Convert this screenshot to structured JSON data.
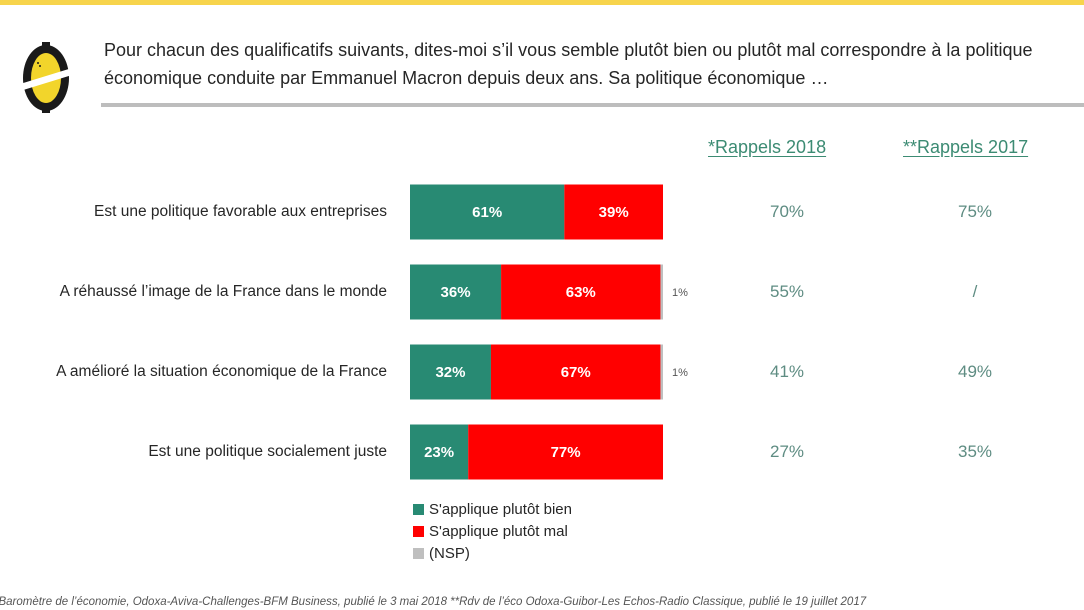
{
  "question": "Pour chacun des qualificatifs suivants, dites-moi s’il vous semble plutôt bien ou plutôt mal correspondre à la politique économique conduite par Emmanuel Macron depuis deux ans. Sa politique économique …",
  "columns": {
    "rappels_2018": "*Rappels 2018",
    "rappels_2017": "**Rappels 2017"
  },
  "colors": {
    "top_bar": "#F7D44C",
    "bien": "#288A73",
    "mal": "#FF0000",
    "nsp": "#BFBFBF",
    "rappel_text": "#5E8C82"
  },
  "chart_data": {
    "type": "bar",
    "orientation": "horizontal",
    "stacked": true,
    "categories": [
      "Est une politique favorable aux entreprises",
      "A réhaussé l’image de la France dans le monde",
      "A amélioré la situation économique de la France",
      "Est une politique socialement juste"
    ],
    "series": [
      {
        "name": "S'applique plutôt bien",
        "values": [
          61,
          36,
          32,
          23
        ],
        "labels": [
          "61%",
          "36%",
          "32%",
          "23%"
        ]
      },
      {
        "name": "S'applique plutôt mal",
        "values": [
          39,
          63,
          67,
          77
        ],
        "labels": [
          "39%",
          "63%",
          "67%",
          "77%"
        ]
      },
      {
        "name": "(NSP)",
        "values": [
          0,
          1,
          1,
          0
        ],
        "labels": [
          "",
          "1%",
          "1%",
          ""
        ]
      }
    ],
    "xlim": [
      0,
      100
    ],
    "legend": {
      "placement": "bottom",
      "entries": [
        "S'applique plutôt bien",
        "S'applique plutôt mal",
        "(NSP)"
      ]
    },
    "rappels_2018": [
      "70%",
      "55%",
      "41%",
      "27%"
    ],
    "rappels_2017": [
      "75%",
      "/",
      "49%",
      "35%"
    ]
  },
  "footnote": "*Baromètre de l’économie, Odoxa-Aviva-Challenges-BFM Business, publié le 3 mai 2018 **Rdv de l’éco Odoxa-Guibor-Les Echos-Radio Classique, publié le 19 juillet 2017"
}
